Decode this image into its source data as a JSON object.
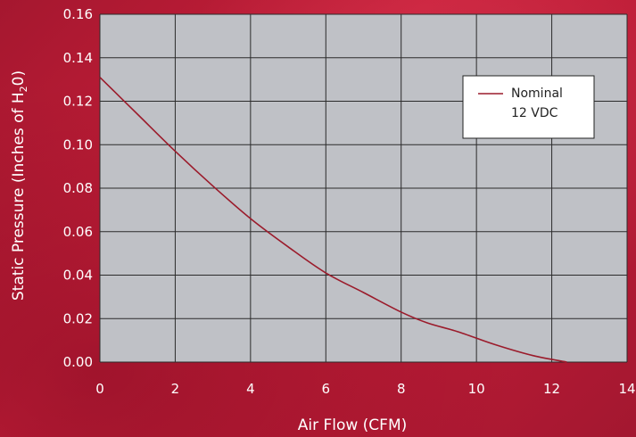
{
  "chart_data": {
    "type": "line",
    "title": "",
    "xlabel": "Air Flow (CFM)",
    "ylabel": "Static Pressure (Inches of H",
    "ylabel_subscript": "2",
    "ylabel_suffix": "0)",
    "xlim": [
      0,
      14
    ],
    "ylim": [
      0.0,
      0.16
    ],
    "xticks": [
      0,
      2,
      4,
      6,
      8,
      10,
      12,
      14
    ],
    "yticks": [
      0.0,
      0.02,
      0.04,
      0.06,
      0.08,
      0.1,
      0.12,
      0.14,
      0.16
    ],
    "x_tick_labels": [
      "0",
      "2",
      "4",
      "6",
      "8",
      "10",
      "12",
      "14"
    ],
    "y_tick_labels": [
      "0.00",
      "0.02",
      "0.04",
      "0.06",
      "0.08",
      "0.10",
      "0.12",
      "0.14",
      "0.16"
    ],
    "grid": true,
    "legend_position": "top-right",
    "series": [
      {
        "name": "Nominal 12 VDC",
        "legend_lines": [
          "Nominal",
          "12 VDC"
        ],
        "color": "#9b1b2b",
        "x": [
          0,
          1,
          2,
          3,
          4,
          5,
          6,
          7,
          8,
          8.7,
          9.5,
          10.5,
          11.5,
          12.4
        ],
        "y": [
          0.131,
          0.114,
          0.097,
          0.081,
          0.066,
          0.053,
          0.041,
          0.032,
          0.023,
          0.018,
          0.014,
          0.008,
          0.003,
          0.0
        ]
      }
    ]
  },
  "colors": {
    "background": "#c0203a",
    "plot_area": "#bfc1c6",
    "grid": "#2b2b2b",
    "axis_text": "#ffffff",
    "legend_background": "#ffffff"
  }
}
